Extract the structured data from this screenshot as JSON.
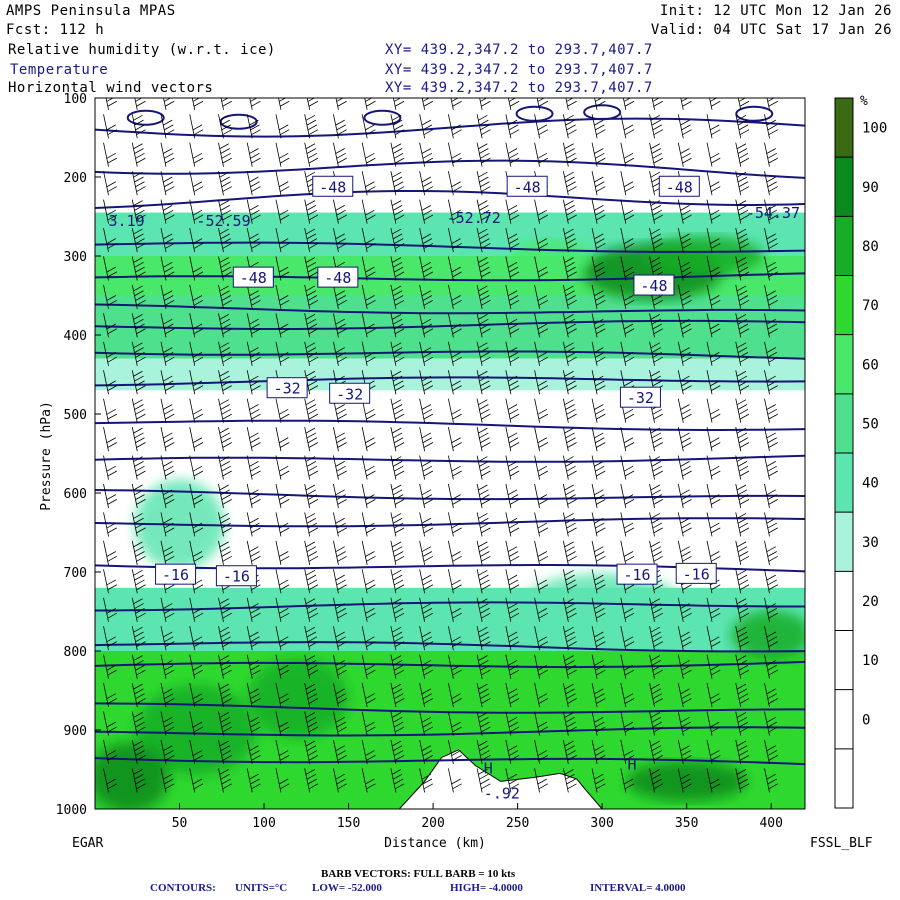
{
  "header": {
    "model": "AMPS Peninsula MPAS",
    "init": "Init: 12 UTC Mon 12 Jan 26",
    "fcst": "Fcst: 112 h",
    "valid": "Valid: 04 UTC Sat 17 Jan 26",
    "field1_name": "Relative humidity (w.r.t. ice)",
    "field1_xy": "XY= 439.2,347.2 to 293.7,407.7",
    "field2_name": "Temperature",
    "field2_xy": "XY= 439.2,347.2 to 293.7,407.7",
    "field3_name": "Horizontal wind vectors",
    "field3_xy": "XY= 439.2,347.2 to 293.7,407.7"
  },
  "footer": {
    "barb_note": "BARB VECTORS:  FULL BARB = 10 kts",
    "contours_label": "CONTOURS:",
    "units": "UNITS=°C",
    "low": "LOW= -52.000",
    "high": "HIGH= -4.0000",
    "interval": "INTERVAL=  4.0000"
  },
  "chart_data": {
    "type": "heatmap",
    "title": "Cross-section: Relative humidity (w.r.t. ice), Temperature, Horizontal wind vectors",
    "xlabel": "Distance (km)",
    "ylabel": "Pressure (hPa)",
    "x_left_label": "EGAR",
    "x_right_label": "FSSL_BLF",
    "xlim": [
      0,
      420
    ],
    "ylim": [
      1000,
      100
    ],
    "x_ticks": [
      "50",
      "100",
      "150",
      "200",
      "250",
      "300",
      "350",
      "400"
    ],
    "x_tick_values": [
      50,
      100,
      150,
      200,
      250,
      300,
      350,
      400
    ],
    "y_ticks": [
      "100",
      "200",
      "300",
      "400",
      "500",
      "600",
      "700",
      "800",
      "900",
      "1000"
    ],
    "y_tick_values": [
      100,
      200,
      300,
      400,
      500,
      600,
      700,
      800,
      900,
      1000
    ],
    "colorbar": {
      "unit": "%",
      "labels": [
        "100",
        "90",
        "80",
        "70",
        "60",
        "50",
        "40",
        "30",
        "20",
        "10",
        "0"
      ],
      "levels": [
        100,
        90,
        80,
        70,
        60,
        50,
        40,
        30,
        20,
        10,
        0
      ],
      "colors": [
        "#3a6a12",
        "#0a8a1e",
        "#19ad27",
        "#2fd82f",
        "#49e86a",
        "#4fe08e",
        "#5ce5b0",
        "#a9f3dc",
        "#ffffff",
        "#ffffff",
        "#ffffff",
        "#ffffff"
      ]
    },
    "temperature_contours_C": [
      -52,
      -48,
      -44,
      -40,
      -36,
      -32,
      -28,
      -24,
      -20,
      -16,
      -12,
      -8,
      -4
    ],
    "contour_labels": [
      {
        "text": "-48",
        "x": 130,
        "p": 213
      },
      {
        "text": "-48",
        "x": 245,
        "p": 213
      },
      {
        "text": "-48",
        "x": 335,
        "p": 213
      },
      {
        "text": "-48",
        "x": 83,
        "p": 328
      },
      {
        "text": "-48",
        "x": 133,
        "p": 328
      },
      {
        "text": "-48",
        "x": 320,
        "p": 338
      },
      {
        "text": "-32",
        "x": 103,
        "p": 468
      },
      {
        "text": "-32",
        "x": 140,
        "p": 475
      },
      {
        "text": "-32",
        "x": 312,
        "p": 480
      },
      {
        "text": "-16",
        "x": 37,
        "p": 704
      },
      {
        "text": "-16",
        "x": 73,
        "p": 706
      },
      {
        "text": "-16",
        "x": 310,
        "p": 704
      },
      {
        "text": "-16",
        "x": 345,
        "p": 703
      }
    ],
    "extremes": [
      {
        "text": "3.19",
        "x": 8,
        "p": 262
      },
      {
        "text": "-52.59",
        "x": 60,
        "p": 262
      },
      {
        "text": "-52.72",
        "x": 208,
        "p": 258
      },
      {
        "text": "-54.37",
        "x": 385,
        "p": 252
      },
      {
        "text": "H",
        "x": 230,
        "p": 955
      },
      {
        "text": "-.92",
        "x": 230,
        "p": 987
      },
      {
        "text": "H",
        "x": 315,
        "p": 950
      }
    ],
    "rh_bands": [
      {
        "p_top": 245,
        "p_bottom": 300,
        "rh": 40
      },
      {
        "p_top": 300,
        "p_bottom": 350,
        "rh": 60
      },
      {
        "p_top": 350,
        "p_bottom": 430,
        "rh": 50
      },
      {
        "p_top": 430,
        "p_bottom": 470,
        "rh": 35
      },
      {
        "p_top": 720,
        "p_bottom": 800,
        "rh": 45
      },
      {
        "p_top": 800,
        "p_bottom": 1000,
        "rh": 70
      }
    ]
  }
}
